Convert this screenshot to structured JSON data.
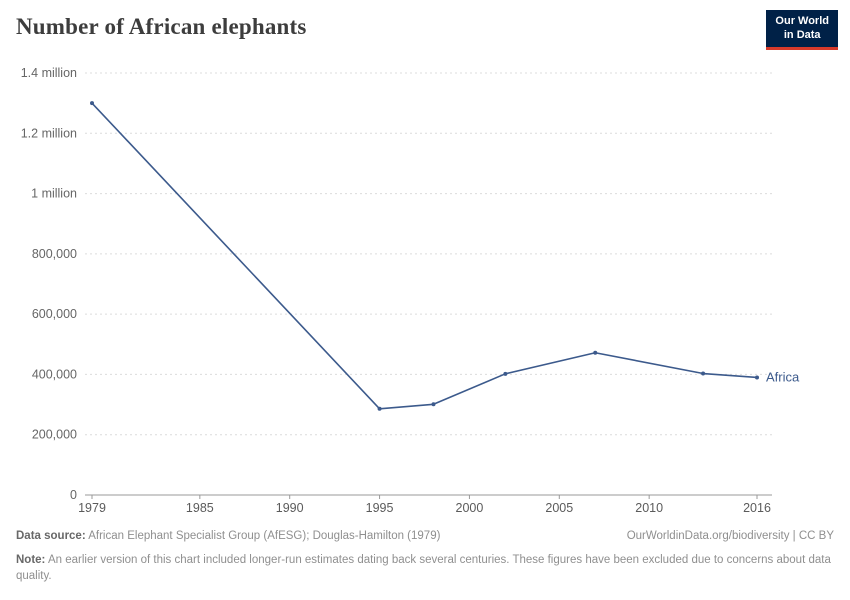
{
  "header": {
    "title": "Number of African elephants",
    "logo": {
      "line1": "Our World",
      "line2": "in Data",
      "bg_color": "#002147",
      "accent_color": "#d73a2a"
    }
  },
  "chart_data": {
    "type": "line",
    "title": "Number of African elephants",
    "xlabel": "",
    "ylabel": "",
    "xlim": [
      1979,
      2016
    ],
    "ylim": [
      0,
      1400000
    ],
    "grid": "horizontal-dashed",
    "legend_position": "end-of-line",
    "x_ticks": [
      1979,
      1985,
      1990,
      1995,
      2000,
      2005,
      2010,
      2016
    ],
    "y_ticks": [
      {
        "value": 0,
        "label": "0"
      },
      {
        "value": 200000,
        "label": "200,000"
      },
      {
        "value": 400000,
        "label": "400,000"
      },
      {
        "value": 600000,
        "label": "600,000"
      },
      {
        "value": 800000,
        "label": "800,000"
      },
      {
        "value": 1000000,
        "label": "1 million"
      },
      {
        "value": 1200000,
        "label": "1.2 million"
      },
      {
        "value": 1400000,
        "label": "1.4 million"
      }
    ],
    "series": [
      {
        "name": "Africa",
        "end_label": "Africa",
        "color": "#3c5a8c",
        "x": [
          1979,
          1995,
          1998,
          2002,
          2007,
          2013,
          2016
        ],
        "y": [
          1300000,
          286000,
          301000,
          402000,
          472000,
          403000,
          390000
        ]
      }
    ],
    "axis_color": "#999999",
    "grid_color": "#dcdcdc",
    "tick_label_color": "#666666"
  },
  "footer": {
    "source_label": "Data source:",
    "source_text": " African Elephant Specialist Group (AfESG); Douglas-Hamilton (1979)",
    "credit": "OurWorldinData.org/biodiversity | CC BY",
    "note_label": "Note:",
    "note_text": " An earlier version of this chart included longer-run estimates dating back several centuries. These figures have been excluded due to concerns about data quality."
  }
}
